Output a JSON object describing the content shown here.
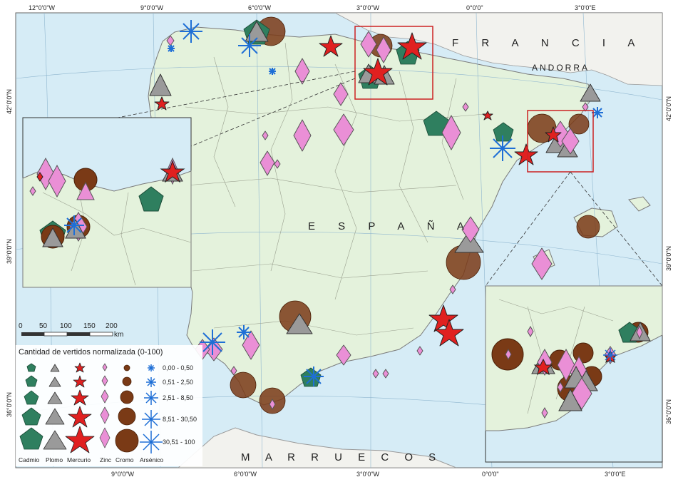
{
  "map": {
    "countries": {
      "francia": "F R A N C I A",
      "andorra": "ANDORRA",
      "espana": "E S P A Ñ A",
      "marruecos": "M A R R U E C O S"
    },
    "top_axis_labels": [
      "12°0'0\"W",
      "9°0'0\"W",
      "6°0'0\"W",
      "3°0'0\"W",
      "0°0'0\"",
      "3°0'0\"E"
    ],
    "bottom_axis_labels": [
      "9°0'0\"W",
      "6°0'0\"W",
      "3°0'0\"W",
      "0°0'0\"",
      "3°0'0\"E"
    ],
    "left_axis_labels": [
      "42°0'0\"N",
      "39°0'0\"N",
      "36°0'0\"N"
    ],
    "right_axis_labels": [
      "42°0'0\"N",
      "39°0'0\"N",
      "36°0'0\"N"
    ],
    "colors": {
      "sea": "#d6ecf6",
      "land": "#e4f2dc",
      "cadmio": "#2f7f5f",
      "plomo": "#9a9a9a",
      "mercurio": "#e02020",
      "zinc": "#ea8fd6",
      "cromo": "#7a3a16",
      "arsenico": "#1e6fd6"
    }
  },
  "scale_bar": {
    "ticks": [
      "0",
      "50",
      "100",
      "150",
      "200"
    ],
    "unit": "km"
  },
  "legend": {
    "title": "Cantidad de vertidos normalizada (0-100)",
    "columns": [
      "Cadmio",
      "Plomo",
      "Mercurio",
      "Zinc",
      "Cromo",
      "Arsénico"
    ],
    "ranges": [
      "0,00 - 0,50",
      "0,51 - 2,50",
      "2,51 - 8,50",
      "8,51 - 30,50",
      "30,51 - 100"
    ]
  }
}
